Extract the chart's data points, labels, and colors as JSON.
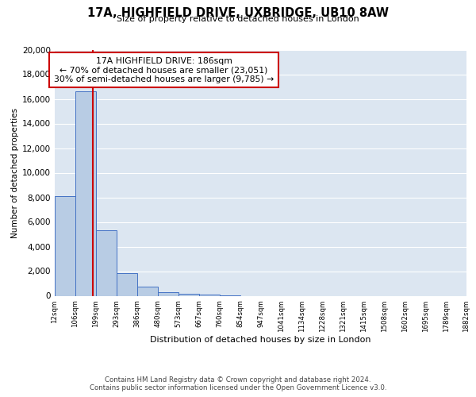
{
  "title": "17A, HIGHFIELD DRIVE, UXBRIDGE, UB10 8AW",
  "subtitle": "Size of property relative to detached houses in London",
  "xlabel": "Distribution of detached houses by size in London",
  "ylabel": "Number of detached properties",
  "bin_labels": [
    "12sqm",
    "106sqm",
    "199sqm",
    "293sqm",
    "386sqm",
    "480sqm",
    "573sqm",
    "667sqm",
    "760sqm",
    "854sqm",
    "947sqm",
    "1041sqm",
    "1134sqm",
    "1228sqm",
    "1321sqm",
    "1415sqm",
    "1508sqm",
    "1602sqm",
    "1695sqm",
    "1789sqm",
    "1882sqm"
  ],
  "bar_heights": [
    8100,
    16600,
    5300,
    1850,
    750,
    300,
    150,
    80,
    30,
    0,
    0,
    0,
    0,
    0,
    0,
    0,
    0,
    0,
    0,
    0
  ],
  "bar_color": "#b8cce4",
  "bar_edge_color": "#4472c4",
  "annotation_title": "17A HIGHFIELD DRIVE: 186sqm",
  "annotation_line1": "← 70% of detached houses are smaller (23,051)",
  "annotation_line2": "30% of semi-detached houses are larger (9,785) →",
  "annotation_box_color": "#ffffff",
  "annotation_box_edge_color": "#cc0000",
  "red_line_color": "#cc0000",
  "ylim": [
    0,
    20000
  ],
  "yticks": [
    0,
    2000,
    4000,
    6000,
    8000,
    10000,
    12000,
    14000,
    16000,
    18000,
    20000
  ],
  "background_color": "#dce6f1",
  "footer_line1": "Contains HM Land Registry data © Crown copyright and database right 2024.",
  "footer_line2": "Contains public sector information licensed under the Open Government Licence v3.0."
}
